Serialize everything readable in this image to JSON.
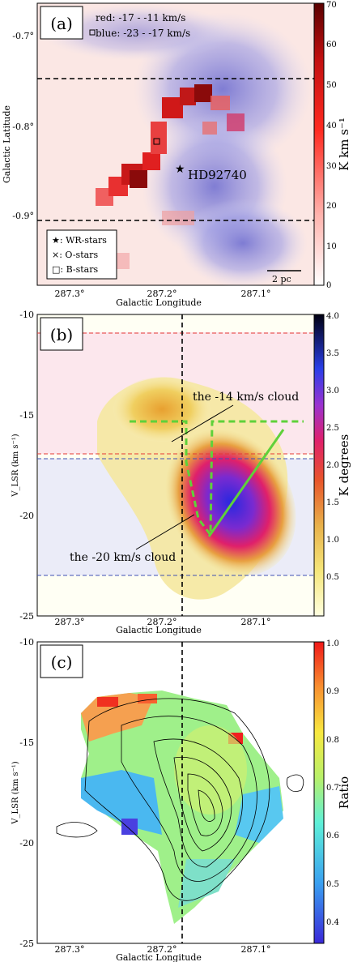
{
  "panels": [
    {
      "id": "a",
      "label": "(a)",
      "xlabel": "Galactic Longitude",
      "ylabel": "Galactic Latitude",
      "xticks": [
        "287.3°",
        "287.2°",
        "287.1°"
      ],
      "yticks": [
        "-0.7°",
        "-0.8°",
        "-0.9°"
      ],
      "cbar_label": "K km s⁻¹",
      "cbar_ticks": [
        "0",
        "10",
        "20",
        "30",
        "40",
        "50",
        "60",
        "70"
      ],
      "legend_red": "red: -17 - -11 km/s",
      "legend_blue": "blue: -23 - -17 km/s",
      "star_label": "HD92740",
      "markers_legend": [
        "★: WR-stars",
        "×: O-stars",
        "□: B-stars"
      ],
      "scalebar": "2 pc"
    },
    {
      "id": "b",
      "label": "(b)",
      "xlabel": "Galactic Longitude",
      "ylabel": "V_LSR (km s⁻¹)",
      "xticks": [
        "287.3°",
        "287.2°",
        "287.1°"
      ],
      "yticks": [
        "-10",
        "-15",
        "-20",
        "-25"
      ],
      "cbar_label": "K degrees",
      "cbar_ticks": [
        "0.5",
        "1.0",
        "1.5",
        "2.0",
        "2.5",
        "3.0",
        "3.5",
        "4.0"
      ],
      "cloud14": "the -14 km/s cloud",
      "cloud20": "the -20 km/s cloud"
    },
    {
      "id": "c",
      "label": "(c)",
      "xlabel": "Galactic Longitude",
      "ylabel": "V_LSR (km s⁻¹)",
      "xticks": [
        "287.3°",
        "287.2°",
        "287.1°"
      ],
      "yticks": [
        "-10",
        "-15",
        "-20",
        "-25"
      ],
      "cbar_label": "Ratio",
      "cbar_ticks": [
        "0.4",
        "0.5",
        "0.6",
        "0.7",
        "0.8",
        "0.9",
        "1.0"
      ]
    }
  ],
  "colors": {
    "red": "#e53935",
    "blue": "#3f51b5",
    "green": "#5fd13a"
  }
}
